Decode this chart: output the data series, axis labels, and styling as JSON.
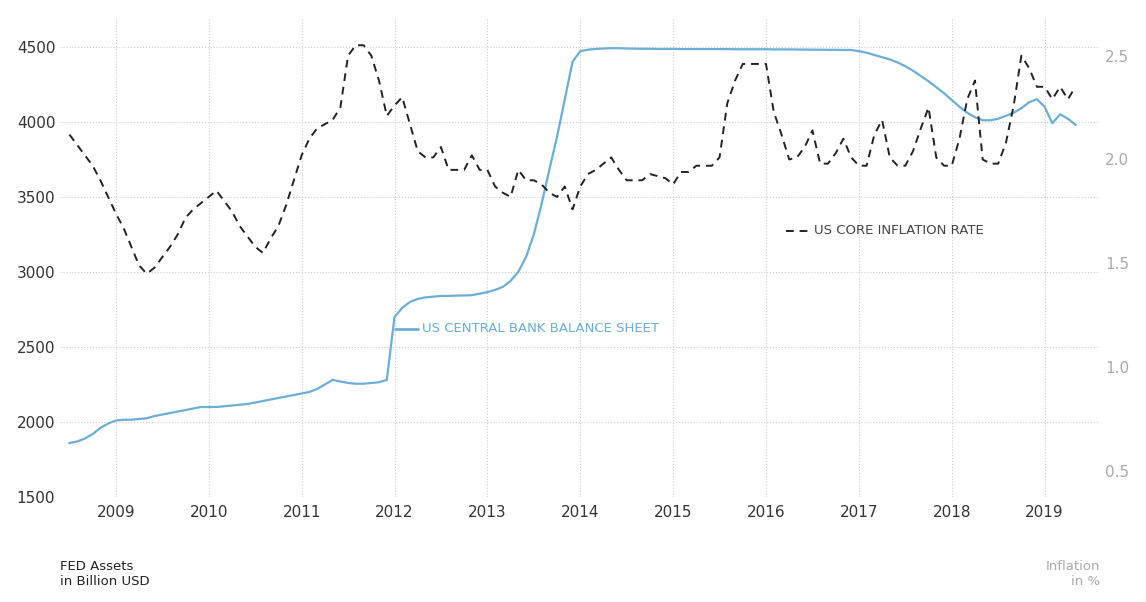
{
  "left_ylabel": "FED Assets\nin Billion USD",
  "right_ylabel": "Inflation\nin %",
  "left_ylim": [
    1500,
    4700
  ],
  "right_ylim": [
    0.375,
    2.6875
  ],
  "left_yticks": [
    1500,
    2000,
    2500,
    3000,
    3500,
    4000,
    4500
  ],
  "right_yticks": [
    0.5,
    1.0,
    1.5,
    2.0,
    2.5
  ],
  "background_color": "#ffffff",
  "grid_color": "#cccccc",
  "balance_sheet_color": "#6baed6",
  "inflation_color": "#222222",
  "inflation_label_color": "#444444",
  "balance_sheet_label": "US CENTRAL BANK BALANCE SHEET",
  "inflation_label": "US CORE INFLATION RATE",
  "balance_sheet_dates": [
    2008.5,
    2008.583,
    2008.667,
    2008.75,
    2008.833,
    2008.917,
    2009.0,
    2009.083,
    2009.167,
    2009.25,
    2009.333,
    2009.417,
    2009.5,
    2009.583,
    2009.667,
    2009.75,
    2009.833,
    2009.917,
    2010.0,
    2010.083,
    2010.167,
    2010.25,
    2010.333,
    2010.417,
    2010.5,
    2010.583,
    2010.667,
    2010.75,
    2010.833,
    2010.917,
    2011.0,
    2011.083,
    2011.167,
    2011.25,
    2011.333,
    2011.417,
    2011.5,
    2011.583,
    2011.667,
    2011.75,
    2011.833,
    2011.917,
    2012.0,
    2012.083,
    2012.167,
    2012.25,
    2012.333,
    2012.417,
    2012.5,
    2012.583,
    2012.667,
    2012.75,
    2012.833,
    2012.917,
    2013.0,
    2013.083,
    2013.167,
    2013.25,
    2013.333,
    2013.417,
    2013.5,
    2013.583,
    2013.667,
    2013.75,
    2013.833,
    2013.917,
    2014.0,
    2014.083,
    2014.167,
    2014.25,
    2014.333,
    2014.417,
    2014.5,
    2014.583,
    2014.667,
    2014.75,
    2014.833,
    2014.917,
    2015.0,
    2015.083,
    2015.167,
    2015.25,
    2015.333,
    2015.417,
    2015.5,
    2015.583,
    2015.667,
    2015.75,
    2015.833,
    2015.917,
    2016.0,
    2016.083,
    2016.167,
    2016.25,
    2016.333,
    2016.417,
    2016.5,
    2016.583,
    2016.667,
    2016.75,
    2016.833,
    2016.917,
    2017.0,
    2017.083,
    2017.167,
    2017.25,
    2017.333,
    2017.417,
    2017.5,
    2017.583,
    2017.667,
    2017.75,
    2017.833,
    2017.917,
    2018.0,
    2018.083,
    2018.167,
    2018.25,
    2018.333,
    2018.417,
    2018.5,
    2018.583,
    2018.667,
    2018.75,
    2018.833,
    2018.917,
    2019.0,
    2019.083,
    2019.167,
    2019.25,
    2019.333
  ],
  "balance_sheet_values": [
    1860,
    1870,
    1890,
    1920,
    1960,
    1990,
    2010,
    2015,
    2015,
    2020,
    2025,
    2040,
    2050,
    2060,
    2070,
    2080,
    2090,
    2100,
    2100,
    2100,
    2105,
    2110,
    2115,
    2120,
    2130,
    2140,
    2150,
    2160,
    2170,
    2180,
    2190,
    2200,
    2220,
    2250,
    2280,
    2270,
    2260,
    2255,
    2255,
    2260,
    2265,
    2280,
    2700,
    2760,
    2800,
    2820,
    2830,
    2835,
    2840,
    2840,
    2842,
    2843,
    2845,
    2855,
    2865,
    2880,
    2900,
    2940,
    3000,
    3100,
    3250,
    3450,
    3680,
    3900,
    4150,
    4400,
    4470,
    4480,
    4485,
    4488,
    4490,
    4490,
    4488,
    4487,
    4486,
    4486,
    4485,
    4485,
    4485,
    4484,
    4484,
    4484,
    4484,
    4484,
    4484,
    4484,
    4483,
    4483,
    4483,
    4483,
    4483,
    4482,
    4482,
    4482,
    4481,
    4481,
    4480,
    4480,
    4479,
    4479,
    4478,
    4478,
    4470,
    4460,
    4445,
    4430,
    4415,
    4395,
    4370,
    4340,
    4305,
    4270,
    4230,
    4190,
    4145,
    4100,
    4060,
    4030,
    4010,
    4010,
    4020,
    4040,
    4060,
    4090,
    4130,
    4150,
    4100,
    3990,
    4050,
    4020,
    3980
  ],
  "inflation_dates": [
    2008.5,
    2008.583,
    2008.667,
    2008.75,
    2008.833,
    2008.917,
    2009.0,
    2009.083,
    2009.167,
    2009.25,
    2009.333,
    2009.417,
    2009.5,
    2009.583,
    2009.667,
    2009.75,
    2009.833,
    2009.917,
    2010.0,
    2010.083,
    2010.167,
    2010.25,
    2010.333,
    2010.417,
    2010.5,
    2010.583,
    2010.667,
    2010.75,
    2010.833,
    2010.917,
    2011.0,
    2011.083,
    2011.167,
    2011.25,
    2011.333,
    2011.417,
    2011.5,
    2011.583,
    2011.667,
    2011.75,
    2011.833,
    2011.917,
    2012.0,
    2012.083,
    2012.167,
    2012.25,
    2012.333,
    2012.417,
    2012.5,
    2012.583,
    2012.667,
    2012.75,
    2012.833,
    2012.917,
    2013.0,
    2013.083,
    2013.167,
    2013.25,
    2013.333,
    2013.417,
    2013.5,
    2013.583,
    2013.667,
    2013.75,
    2013.833,
    2013.917,
    2014.0,
    2014.083,
    2014.167,
    2014.25,
    2014.333,
    2014.417,
    2014.5,
    2014.583,
    2014.667,
    2014.75,
    2014.833,
    2014.917,
    2015.0,
    2015.083,
    2015.167,
    2015.25,
    2015.333,
    2015.417,
    2015.5,
    2015.583,
    2015.667,
    2015.75,
    2015.833,
    2015.917,
    2016.0,
    2016.083,
    2016.167,
    2016.25,
    2016.333,
    2016.417,
    2016.5,
    2016.583,
    2016.667,
    2016.75,
    2016.833,
    2016.917,
    2017.0,
    2017.083,
    2017.167,
    2017.25,
    2017.333,
    2017.417,
    2017.5,
    2017.583,
    2017.667,
    2017.75,
    2017.833,
    2017.917,
    2018.0,
    2018.083,
    2018.167,
    2018.25,
    2018.333,
    2018.417,
    2018.5,
    2018.583,
    2018.667,
    2018.75,
    2018.833,
    2018.917,
    2019.0,
    2019.083,
    2019.167,
    2019.25,
    2019.333
  ],
  "inflation_values": [
    2.12,
    2.07,
    2.02,
    1.97,
    1.9,
    1.82,
    1.74,
    1.67,
    1.58,
    1.49,
    1.45,
    1.48,
    1.53,
    1.58,
    1.64,
    1.72,
    1.76,
    1.79,
    1.82,
    1.85,
    1.8,
    1.75,
    1.68,
    1.63,
    1.58,
    1.55,
    1.62,
    1.68,
    1.78,
    1.9,
    2.02,
    2.1,
    2.15,
    2.17,
    2.19,
    2.25,
    2.5,
    2.55,
    2.55,
    2.5,
    2.38,
    2.21,
    2.26,
    2.3,
    2.17,
    2.04,
    2.01,
    2.01,
    2.06,
    1.95,
    1.95,
    1.95,
    2.02,
    1.95,
    1.95,
    1.87,
    1.84,
    1.82,
    1.95,
    1.9,
    1.9,
    1.88,
    1.84,
    1.82,
    1.87,
    1.76,
    1.87,
    1.93,
    1.95,
    1.98,
    2.01,
    1.95,
    1.9,
    1.9,
    1.9,
    1.93,
    1.92,
    1.91,
    1.88,
    1.94,
    1.94,
    1.97,
    1.97,
    1.97,
    2.01,
    2.27,
    2.38,
    2.46,
    2.46,
    2.46,
    2.46,
    2.23,
    2.12,
    2.0,
    2.01,
    2.06,
    2.14,
    1.98,
    1.98,
    2.03,
    2.1,
    2.01,
    1.97,
    1.97,
    2.12,
    2.19,
    2.01,
    1.97,
    1.97,
    2.04,
    2.15,
    2.25,
    2.01,
    1.97,
    1.97,
    2.1,
    2.29,
    2.38,
    2.0,
    1.98,
    1.98,
    2.08,
    2.26,
    2.5,
    2.44,
    2.35,
    2.35,
    2.29,
    2.35,
    2.29,
    2.35
  ],
  "xlim": [
    2008.4,
    2019.6
  ],
  "xticks": [
    2009,
    2010,
    2011,
    2012,
    2013,
    2014,
    2015,
    2016,
    2017,
    2018,
    2019
  ]
}
